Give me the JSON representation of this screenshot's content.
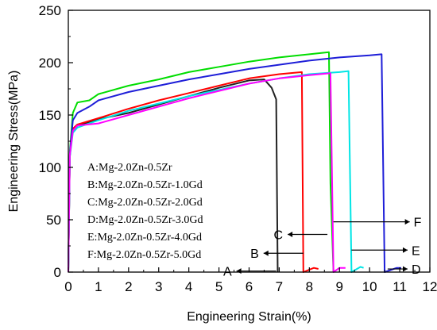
{
  "chart_data": {
    "type": "line",
    "xlabel": "Engineering Strain(%)",
    "ylabel": "Engineering Stress(MPa)",
    "xlim": [
      0,
      12
    ],
    "ylim": [
      0,
      250
    ],
    "xticks": [
      "0",
      "1",
      "2",
      "3",
      "4",
      "5",
      "6",
      "7",
      "8",
      "9",
      "10",
      "11",
      "12"
    ],
    "yticks": [
      "0",
      "50",
      "100",
      "150",
      "200",
      "250"
    ],
    "grid": false,
    "legend_entries": [
      "A:Mg-2.0Zn-0.5Zr",
      "B:Mg-2.0Zn-0.5Zr-1.0Gd",
      "C:Mg-2.0Zn-0.5Zr-2.0Gd",
      "D:Mg-2.0Zn-0.5Zr-3.0Gd",
      "E:Mg-2.0Zn-0.5Zr-4.0Gd",
      "F:Mg-2.0Zn-0.5Zr-5.0Gd"
    ],
    "series": [
      {
        "name": "A",
        "color": "#222222",
        "points": [
          [
            0,
            0
          ],
          [
            0.05,
            110
          ],
          [
            0.12,
            133
          ],
          [
            0.3,
            140
          ],
          [
            1,
            146
          ],
          [
            2,
            152
          ],
          [
            3,
            160
          ],
          [
            4,
            168
          ],
          [
            5,
            176
          ],
          [
            6,
            183
          ],
          [
            6.5,
            184
          ],
          [
            6.75,
            176
          ],
          [
            6.9,
            165
          ],
          [
            6.95,
            0
          ]
        ]
      },
      {
        "name": "B",
        "color": "#ff0000",
        "points": [
          [
            0,
            0
          ],
          [
            0.05,
            112
          ],
          [
            0.15,
            137
          ],
          [
            0.3,
            141
          ],
          [
            1,
            147
          ],
          [
            2,
            156
          ],
          [
            3,
            164
          ],
          [
            4,
            171
          ],
          [
            5,
            178
          ],
          [
            6,
            185
          ],
          [
            7,
            189
          ],
          [
            7.75,
            191
          ],
          [
            7.8,
            0
          ],
          [
            8.15,
            4
          ],
          [
            8.3,
            3
          ]
        ]
      },
      {
        "name": "C",
        "color": "#00dd00",
        "points": [
          [
            0,
            0
          ],
          [
            0.05,
            115
          ],
          [
            0.15,
            152
          ],
          [
            0.3,
            162
          ],
          [
            0.7,
            164
          ],
          [
            1,
            170
          ],
          [
            2,
            178
          ],
          [
            3,
            184
          ],
          [
            4,
            191
          ],
          [
            5,
            196
          ],
          [
            6,
            201
          ],
          [
            7,
            205
          ],
          [
            8,
            208
          ],
          [
            8.65,
            210
          ],
          [
            8.7,
            85
          ],
          [
            8.8,
            0
          ]
        ]
      },
      {
        "name": "D",
        "color": "#1e1ed8",
        "points": [
          [
            0,
            0
          ],
          [
            0.05,
            113
          ],
          [
            0.15,
            145
          ],
          [
            0.3,
            152
          ],
          [
            0.7,
            158
          ],
          [
            1,
            164
          ],
          [
            2,
            172
          ],
          [
            3,
            178
          ],
          [
            4,
            184
          ],
          [
            5,
            189
          ],
          [
            6,
            194
          ],
          [
            7,
            198
          ],
          [
            8,
            202
          ],
          [
            9,
            205
          ],
          [
            10,
            207
          ],
          [
            10.4,
            208
          ],
          [
            10.5,
            0
          ],
          [
            10.9,
            4
          ],
          [
            11.05,
            4
          ]
        ]
      },
      {
        "name": "E",
        "color": "#00e5e5",
        "points": [
          [
            0,
            0
          ],
          [
            0.05,
            110
          ],
          [
            0.15,
            133
          ],
          [
            0.3,
            138
          ],
          [
            1,
            145
          ],
          [
            2,
            154
          ],
          [
            3,
            161
          ],
          [
            4,
            168
          ],
          [
            5,
            174
          ],
          [
            6,
            180
          ],
          [
            7,
            185
          ],
          [
            8,
            189
          ],
          [
            9,
            191
          ],
          [
            9.3,
            192
          ],
          [
            9.4,
            0
          ],
          [
            9.7,
            5
          ],
          [
            9.8,
            4
          ]
        ]
      },
      {
        "name": "F",
        "color": "#ff00ff",
        "points": [
          [
            0,
            0
          ],
          [
            0.05,
            112
          ],
          [
            0.15,
            135
          ],
          [
            0.3,
            140
          ],
          [
            1,
            142
          ],
          [
            2,
            150
          ],
          [
            3,
            158
          ],
          [
            4,
            166
          ],
          [
            5,
            173
          ],
          [
            6,
            180
          ],
          [
            7,
            185
          ],
          [
            8,
            188
          ],
          [
            8.7,
            190
          ],
          [
            8.8,
            0
          ],
          [
            9.0,
            4
          ],
          [
            9.2,
            4
          ]
        ]
      }
    ],
    "pointer_labels": [
      {
        "label": "A",
        "side": "left",
        "from_x": 6.9,
        "y": 1
      },
      {
        "label": "B",
        "side": "left",
        "from_x": 7.8,
        "y": 18
      },
      {
        "label": "C",
        "side": "left",
        "from_x": 8.6,
        "y": 36
      },
      {
        "label": "D",
        "side": "right",
        "from_x": 10.6,
        "y": 3
      },
      {
        "label": "E",
        "side": "right",
        "from_x": 9.4,
        "y": 21
      },
      {
        "label": "F",
        "side": "right",
        "from_x": 8.8,
        "y": 48
      }
    ]
  }
}
